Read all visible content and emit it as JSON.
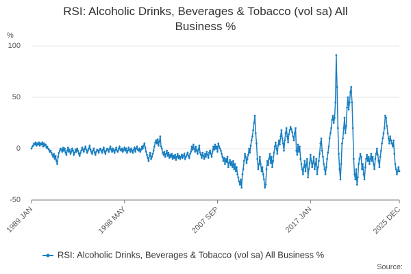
{
  "chart_data": {
    "type": "line",
    "title": "RSI: Alcoholic Drinks, Beverages & Tobacco (vol sa) All Business %",
    "y_unit": "%",
    "source": "Source:",
    "ylim": [
      -50,
      100
    ],
    "yticks": [
      -50,
      0,
      50,
      100
    ],
    "grid": true,
    "categories": [
      "1989 JAN",
      null,
      null,
      null,
      null,
      null,
      null,
      null,
      null,
      null,
      null,
      null,
      null,
      null,
      null,
      null,
      null,
      null,
      null,
      null,
      null,
      null,
      null,
      null,
      null,
      null,
      null,
      null,
      null,
      null,
      null,
      null,
      null,
      null,
      null,
      null,
      null,
      null,
      null,
      null,
      null,
      null,
      null,
      null,
      null,
      null,
      null,
      null,
      null,
      null,
      null,
      null,
      null,
      null,
      null,
      null,
      null,
      null,
      null,
      null,
      null,
      null,
      null,
      null,
      null,
      null,
      null,
      null,
      null,
      null,
      null,
      null,
      null,
      null,
      null,
      null,
      null,
      null,
      null,
      null,
      null,
      null,
      null,
      null,
      null,
      null,
      null,
      null,
      null,
      null,
      null,
      null,
      null,
      null,
      null,
      null,
      null,
      null,
      null,
      null,
      null,
      null,
      null,
      null,
      null,
      null,
      null,
      null,
      null,
      null,
      null,
      null,
      "1998 MAY",
      null,
      null,
      null,
      null,
      null,
      null,
      null,
      null,
      null,
      null,
      null,
      null,
      null,
      null,
      null,
      null,
      null,
      null,
      null,
      null,
      null,
      null,
      null,
      null,
      null,
      null,
      null,
      null,
      null,
      null,
      null,
      null,
      null,
      null,
      null,
      null,
      null,
      null,
      null,
      null,
      null,
      null,
      null,
      null,
      null,
      null,
      null,
      null,
      null,
      null,
      null,
      null,
      null,
      null,
      null,
      null,
      null,
      null,
      null,
      null,
      null,
      null,
      null,
      null,
      null,
      null,
      null,
      null,
      null,
      null,
      null,
      null,
      null,
      null,
      null,
      null,
      null,
      null,
      null,
      null,
      null,
      null,
      null,
      null,
      null,
      null,
      null,
      null,
      null,
      null,
      null,
      null,
      null,
      null,
      null,
      null,
      null,
      null,
      null,
      null,
      null,
      null,
      null,
      null,
      null,
      null,
      null,
      null,
      null,
      null,
      null,
      "2007 SEP",
      null,
      null,
      null,
      null,
      null,
      null,
      null,
      null,
      null,
      null,
      null,
      null,
      null,
      null,
      null,
      null,
      null,
      null,
      null,
      null,
      null,
      null,
      null,
      null,
      null,
      null,
      null,
      null,
      null,
      null,
      null,
      null,
      null,
      null,
      null,
      null,
      null,
      null,
      null,
      null,
      null,
      null,
      null,
      null,
      null,
      null,
      null,
      null,
      null,
      null,
      null,
      null,
      null,
      null,
      null,
      null,
      null,
      null,
      null,
      null,
      null,
      null,
      null,
      null,
      null,
      null,
      null,
      null,
      null,
      null,
      null,
      null,
      null,
      null,
      null,
      null,
      null,
      null,
      null,
      null,
      null,
      null,
      null,
      null,
      null,
      null,
      null,
      null,
      null,
      null,
      null,
      null,
      null,
      null,
      null,
      null,
      null,
      null,
      null,
      null,
      null,
      null,
      null,
      null,
      null,
      null,
      null,
      null,
      null,
      null,
      null,
      "2017 JAN",
      null,
      null,
      null,
      null,
      null,
      null,
      null,
      null,
      null,
      null,
      null,
      null,
      null,
      null,
      null,
      null,
      null,
      null,
      null,
      null,
      null,
      null,
      null,
      null,
      null,
      null,
      null,
      null,
      null,
      null,
      null,
      null,
      null,
      null,
      null,
      null,
      null,
      null,
      null,
      null,
      null,
      null,
      null,
      null,
      null,
      null,
      null,
      null,
      null,
      null,
      null,
      null,
      null,
      null,
      null,
      null,
      null,
      null,
      null,
      null,
      null,
      null,
      null,
      null,
      null,
      null,
      null,
      null,
      null,
      null,
      null,
      null,
      null,
      null,
      null,
      null,
      null,
      null,
      null,
      null,
      null,
      null,
      null,
      null,
      null,
      null,
      null,
      null,
      null,
      null,
      null,
      null,
      null,
      null,
      null,
      null,
      null,
      null,
      null,
      null,
      null,
      null,
      null,
      null,
      null,
      null,
      "2025 DEC"
    ],
    "series": [
      {
        "name": "RSI: Alcoholic Drinks, Beverages & Tobacco (vol sa) All Business %",
        "color": "#1a7fc1",
        "values": [
          0,
          2,
          3,
          5,
          4,
          6,
          3,
          5,
          4,
          6,
          3,
          5,
          4,
          6,
          2,
          5,
          3,
          4,
          1,
          2,
          0,
          -1,
          -3,
          -2,
          -4,
          -6,
          -8,
          -5,
          -10,
          -7,
          -12,
          -15,
          -8,
          -4,
          -2,
          0,
          -1,
          -3,
          1,
          -2,
          0,
          -4,
          -6,
          -2,
          1,
          -3,
          -1,
          -5,
          -3,
          0,
          -2,
          -6,
          -4,
          -1,
          -3,
          0,
          -2,
          -5,
          -7,
          -4,
          -2,
          1,
          -1,
          -3,
          0,
          2,
          -1,
          -4,
          -2,
          0,
          3,
          -1,
          -3,
          -5,
          -2,
          0,
          -4,
          -6,
          -3,
          -1,
          -2,
          -4,
          -1,
          0,
          -2,
          -4,
          -1,
          1,
          -3,
          -5,
          -2,
          0,
          -1,
          -3,
          0,
          2,
          -1,
          -3,
          0,
          -2,
          -4,
          -1,
          1,
          -2,
          -3,
          0,
          2,
          -1,
          -2,
          0,
          -3,
          -1,
          1,
          -2,
          0,
          -4,
          -2,
          1,
          -1,
          -3,
          0,
          -2,
          -4,
          -1,
          1,
          -3,
          0,
          2,
          -1,
          -2,
          0,
          -3,
          -1,
          2,
          0,
          3,
          5,
          1,
          -3,
          -6,
          -9,
          -12,
          -7,
          -4,
          -10,
          -8,
          -5,
          -2,
          2,
          6,
          8,
          5,
          9,
          3,
          7,
          12,
          2,
          0,
          -4,
          -6,
          -3,
          -8,
          -5,
          -2,
          -7,
          -4,
          -9,
          -6,
          -8,
          -5,
          -10,
          -7,
          -9,
          -6,
          -11,
          -8,
          -5,
          -9,
          -7,
          -10,
          -8,
          -6,
          -9,
          -7,
          -5,
          -10,
          -8,
          -6,
          -4,
          -7,
          -9,
          -5,
          -3,
          2,
          -1,
          4,
          0,
          -3,
          2,
          -2,
          -5,
          -1,
          3,
          -4,
          -6,
          -9,
          -4,
          -7,
          -10,
          -5,
          -8,
          -3,
          -6,
          -9,
          -4,
          -2,
          -5,
          -8,
          -3,
          2,
          -1,
          4,
          0,
          2,
          -3,
          5,
          2,
          0,
          -2,
          -5,
          -8,
          -12,
          -9,
          -15,
          -10,
          -13,
          -8,
          -18,
          -14,
          -11,
          -16,
          -13,
          -18,
          -12,
          -20,
          -15,
          -22,
          -18,
          -25,
          -28,
          -32,
          -35,
          -30,
          -38,
          -25,
          -20,
          -12,
          -5,
          -8,
          -14,
          -10,
          -6,
          0,
          -4,
          3,
          8,
          12,
          18,
          25,
          32,
          15,
          5,
          -10,
          -20,
          -15,
          -8,
          -15,
          -22,
          -18,
          -25,
          -30,
          -38,
          -35,
          -20,
          -12,
          -16,
          -10,
          -5,
          -14,
          -8,
          -18,
          -12,
          -4,
          2,
          6,
          0,
          -5,
          3,
          8,
          4,
          12,
          18,
          10,
          5,
          -2,
          8,
          15,
          20,
          12,
          6,
          14,
          18,
          21,
          19,
          16,
          12,
          8,
          15,
          20,
          -2,
          -6,
          4,
          -3,
          2,
          -10,
          -15,
          -20,
          -25,
          -18,
          -12,
          -22,
          -16,
          -10,
          -28,
          -20,
          -14,
          -6,
          -12,
          -18,
          -14,
          -8,
          -20,
          -15,
          -10,
          -25,
          -18,
          -12,
          -5,
          5,
          10,
          -2,
          -8,
          -15,
          -20,
          -25,
          -18,
          -10,
          -4,
          2,
          10,
          15,
          20,
          28,
          32,
          25,
          30,
          45,
          91,
          60,
          20,
          -5,
          -20,
          -30,
          -15,
          5,
          10,
          20,
          30,
          15,
          22,
          40,
          50,
          38,
          45,
          55,
          60,
          45,
          20,
          -10,
          -25,
          -30,
          -20,
          -35,
          -28,
          -15,
          -10,
          -5,
          -8,
          -20,
          -15,
          -25,
          -30,
          -18,
          -10,
          -6,
          -12,
          -8,
          -15,
          -10,
          -5,
          -12,
          -8,
          -15,
          -20,
          -10,
          -5,
          0,
          -6,
          -12,
          -18,
          -8,
          -2,
          5,
          10,
          15,
          20,
          32,
          30,
          22,
          15,
          10,
          5,
          12,
          8,
          5,
          2,
          8,
          -5,
          -15,
          -20,
          -25,
          -22,
          -18,
          -22
        ]
      }
    ]
  }
}
